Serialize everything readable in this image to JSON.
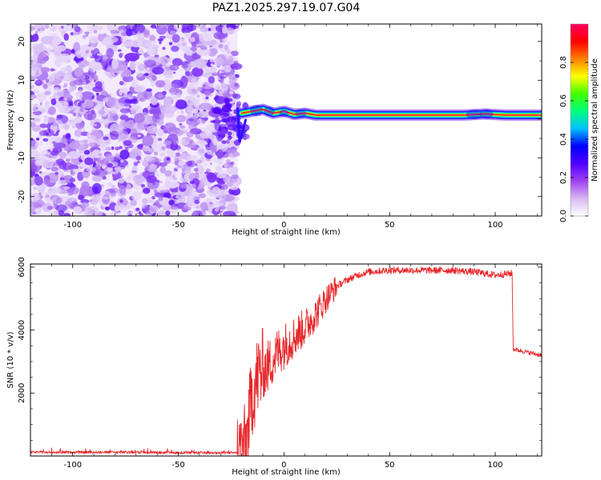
{
  "chart_data": [
    {
      "type": "heatmap",
      "title": "PAZ1.2025.297.19.07.G04",
      "xlabel": "Height of straight line (km)",
      "ylabel": "Frequency (Hz)",
      "xlim": [
        -120,
        122
      ],
      "ylim": [
        -25,
        24.5
      ],
      "xticks": [
        -100,
        -50,
        0,
        50,
        100
      ],
      "yticks": [
        -20,
        -10,
        0,
        10,
        20
      ],
      "colorbar": {
        "label": "Normalized spectral amplitude",
        "range": [
          0.0,
          1.0
        ],
        "ticks": [
          "0.0",
          "0.2",
          "0.4",
          "0.6",
          "0.8"
        ],
        "colors": [
          "#ffffff",
          "#d8b8f2",
          "#a040f0",
          "#5000ff",
          "#0000ff",
          "#00c0ff",
          "#00ff80",
          "#40ff00",
          "#ffff00",
          "#ff8000",
          "#ff0000",
          "#ff0060"
        ]
      },
      "noise_region_x": [
        -120,
        -22
      ],
      "ridge": [
        {
          "x": -20,
          "y": 1.5
        },
        {
          "x": -15,
          "y": 2.0
        },
        {
          "x": -10,
          "y": 2.5
        },
        {
          "x": -5,
          "y": 1.5
        },
        {
          "x": 0,
          "y": 2.0
        },
        {
          "x": 5,
          "y": 1.2
        },
        {
          "x": 10,
          "y": 1.5
        },
        {
          "x": 15,
          "y": 1.0
        },
        {
          "x": 20,
          "y": 1.0
        },
        {
          "x": 50,
          "y": 1.0
        },
        {
          "x": 85,
          "y": 1.0
        },
        {
          "x": 95,
          "y": 1.3
        },
        {
          "x": 105,
          "y": 1.0
        },
        {
          "x": 122,
          "y": 1.0
        }
      ]
    },
    {
      "type": "line",
      "xlabel": "Height of straight line (km)",
      "ylabel": "SNR (10 * v/v)",
      "xlim": [
        -120,
        122
      ],
      "ylim": [
        0,
        6100
      ],
      "xticks": [
        -100,
        -50,
        0,
        50,
        100
      ],
      "yticks": [
        2000,
        4000,
        6000
      ],
      "series": [
        {
          "name": "SNR",
          "color": "#e8262a",
          "points": [
            [
              -120,
              120
            ],
            [
              -100,
              120
            ],
            [
              -80,
              120
            ],
            [
              -60,
              110
            ],
            [
              -40,
              100
            ],
            [
              -22,
              100
            ],
            [
              -18,
              300
            ],
            [
              -15,
              2000
            ],
            [
              -12,
              2600
            ],
            [
              -8,
              2800
            ],
            [
              -3,
              3300
            ],
            [
              0,
              3500
            ],
            [
              5,
              3800
            ],
            [
              10,
              4100
            ],
            [
              15,
              4500
            ],
            [
              20,
              5000
            ],
            [
              25,
              5400
            ],
            [
              30,
              5600
            ],
            [
              35,
              5750
            ],
            [
              40,
              5850
            ],
            [
              50,
              5900
            ],
            [
              60,
              5900
            ],
            [
              70,
              5900
            ],
            [
              80,
              5900
            ],
            [
              90,
              5850
            ],
            [
              100,
              5750
            ],
            [
              108,
              5800
            ],
            [
              108.5,
              3400
            ],
            [
              115,
              3300
            ],
            [
              122,
              3200
            ]
          ]
        }
      ]
    }
  ]
}
